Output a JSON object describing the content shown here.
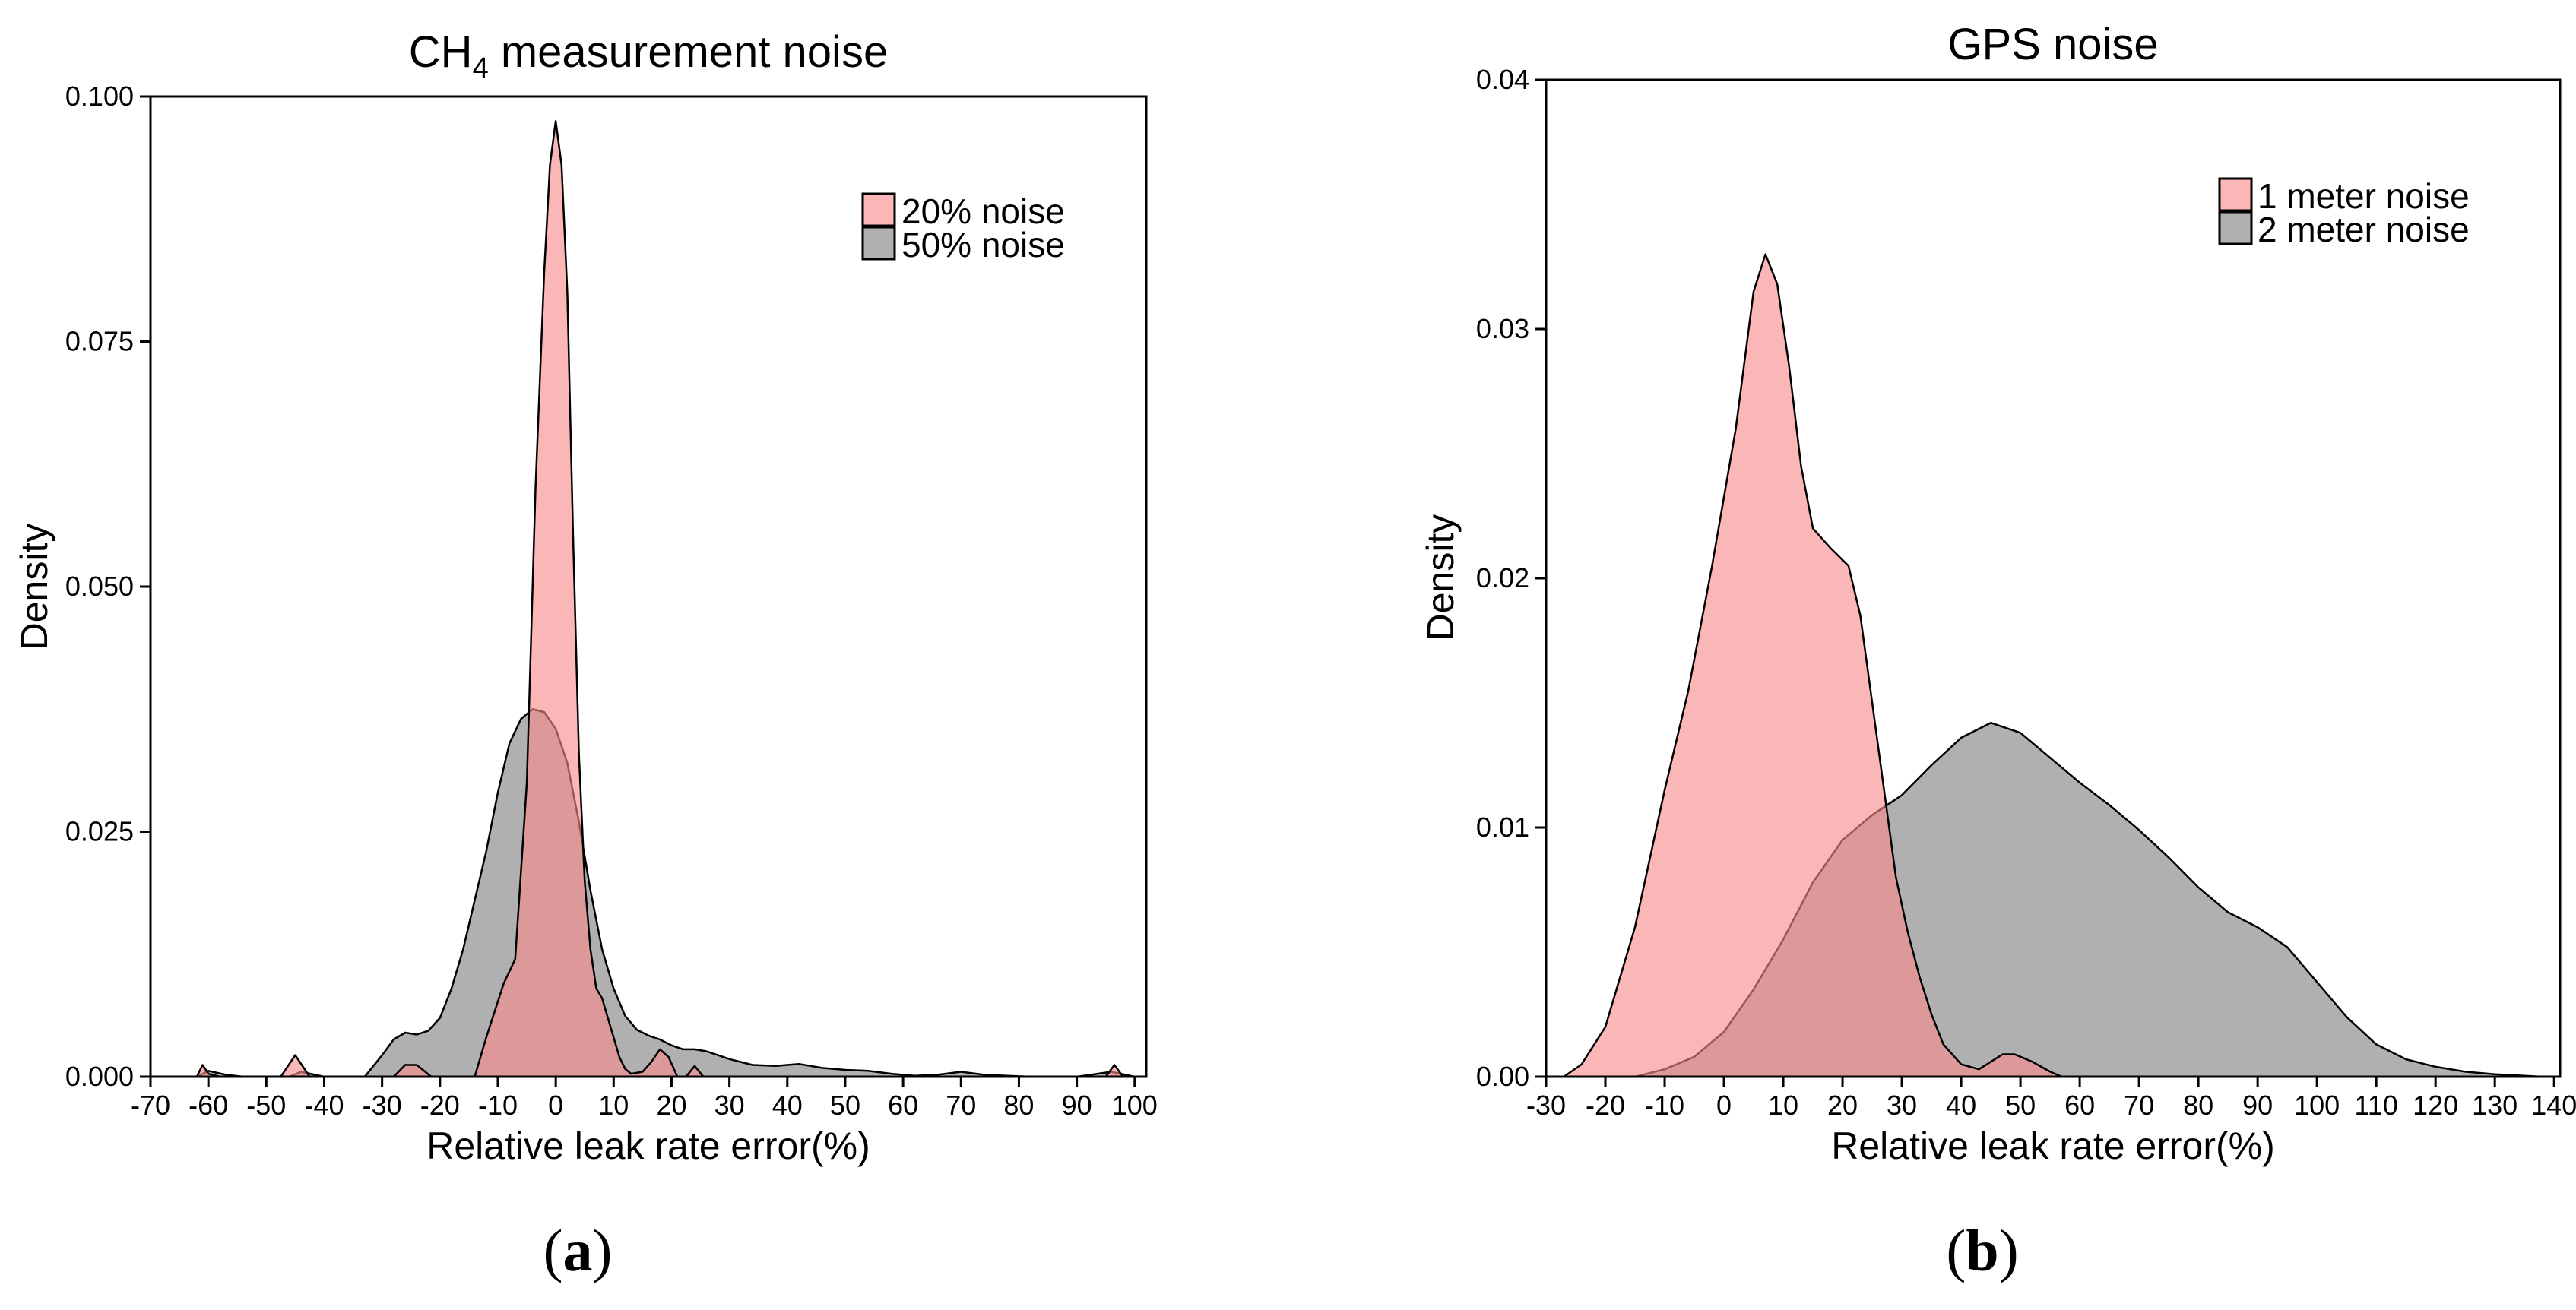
{
  "colors": {
    "pink": "#f98b8b",
    "gray": "#7f7f7f",
    "overlap": "#b07878",
    "stroke": "#000000"
  },
  "chart_data": [
    {
      "type": "area",
      "id": "a",
      "panel_label": "a",
      "title": {
        "main": "CH",
        "sub": "4",
        "rest": " measurement noise"
      },
      "xlabel": "Relative leak rate error(%)",
      "ylabel": "Density",
      "xlim": [
        -70,
        102
      ],
      "ylim": [
        0,
        0.1
      ],
      "x_ticks": [
        -70,
        -60,
        -50,
        -40,
        -30,
        -20,
        -10,
        0,
        10,
        20,
        30,
        40,
        50,
        60,
        70,
        80,
        90,
        100
      ],
      "x_tick_labels": [
        "-70",
        "-60",
        "-50",
        "-40",
        "-30",
        "-20",
        "-10",
        "0",
        "10",
        "20",
        "30",
        "40",
        "50",
        "60",
        "70",
        "80",
        "90",
        "100"
      ],
      "y_ticks": [
        0,
        0.025,
        0.05,
        0.075,
        0.1
      ],
      "y_tick_labels": [
        "0.000",
        "0.025",
        "0.050",
        "0.075",
        "0.100"
      ],
      "legend_position": "top-right",
      "series": [
        {
          "name": "20% noise",
          "color_key": "pink",
          "points": [
            [
              -62,
              0
            ],
            [
              -61,
              0.0012
            ],
            [
              -60,
              0.0003
            ],
            [
              -58,
              0
            ],
            [
              -47.5,
              0
            ],
            [
              -45,
              0.0022
            ],
            [
              -42.5,
              0
            ],
            [
              -28,
              0
            ],
            [
              -26,
              0.0012
            ],
            [
              -24,
              0.0012
            ],
            [
              -21.5,
              0
            ],
            [
              -14,
              0
            ],
            [
              -12,
              0.004
            ],
            [
              -9,
              0.0095
            ],
            [
              -7,
              0.012
            ],
            [
              -5,
              0.03
            ],
            [
              -3.5,
              0.06
            ],
            [
              -2,
              0.082
            ],
            [
              -1,
              0.093
            ],
            [
              0,
              0.0975
            ],
            [
              1,
              0.093
            ],
            [
              2,
              0.08
            ],
            [
              3,
              0.055
            ],
            [
              4,
              0.033
            ],
            [
              5,
              0.02
            ],
            [
              6,
              0.013
            ],
            [
              7,
              0.009
            ],
            [
              8,
              0.008
            ],
            [
              9,
              0.006
            ],
            [
              10,
              0.004
            ],
            [
              11,
              0.002
            ],
            [
              12,
              0.0008
            ],
            [
              13,
              0.0003
            ],
            [
              15,
              0.0005
            ],
            [
              16.5,
              0.0015
            ],
            [
              18,
              0.0028
            ],
            [
              19.5,
              0.002
            ],
            [
              21,
              0
            ],
            [
              22.5,
              0
            ],
            [
              24,
              0.0011
            ],
            [
              25.5,
              0
            ],
            [
              95,
              0
            ],
            [
              96.5,
              0.0012
            ],
            [
              98,
              0
            ]
          ]
        },
        {
          "name": "50% noise",
          "color_key": "gray",
          "points": [
            [
              -62,
              0
            ],
            [
              -60,
              0.0006
            ],
            [
              -57,
              0.0002
            ],
            [
              -54,
              0
            ],
            [
              -46,
              0
            ],
            [
              -44,
              0.0005
            ],
            [
              -40,
              0
            ],
            [
              -33,
              0
            ],
            [
              -30,
              0.0022
            ],
            [
              -28,
              0.0038
            ],
            [
              -26,
              0.0045
            ],
            [
              -24,
              0.0043
            ],
            [
              -22,
              0.0047
            ],
            [
              -20,
              0.006
            ],
            [
              -18,
              0.009
            ],
            [
              -16,
              0.013
            ],
            [
              -14,
              0.018
            ],
            [
              -12,
              0.023
            ],
            [
              -10,
              0.029
            ],
            [
              -8,
              0.034
            ],
            [
              -6,
              0.0365
            ],
            [
              -4,
              0.0375
            ],
            [
              -2,
              0.0372
            ],
            [
              0,
              0.0355
            ],
            [
              2,
              0.032
            ],
            [
              4,
              0.026
            ],
            [
              6,
              0.019
            ],
            [
              8,
              0.013
            ],
            [
              10,
              0.009
            ],
            [
              12,
              0.0062
            ],
            [
              14,
              0.0048
            ],
            [
              16,
              0.0042
            ],
            [
              18,
              0.0038
            ],
            [
              20,
              0.0032
            ],
            [
              22,
              0.0028
            ],
            [
              24,
              0.0028
            ],
            [
              26,
              0.0026
            ],
            [
              28,
              0.0022
            ],
            [
              30,
              0.0018
            ],
            [
              34,
              0.0012
            ],
            [
              38,
              0.0011
            ],
            [
              42,
              0.0013
            ],
            [
              46,
              0.0009
            ],
            [
              50,
              0.0007
            ],
            [
              54,
              0.0006
            ],
            [
              58,
              0.0003
            ],
            [
              62,
              0.0001
            ],
            [
              66,
              0.0002
            ],
            [
              70,
              0.0005
            ],
            [
              74,
              0.0002
            ],
            [
              78,
              0.0001
            ],
            [
              82,
              0
            ],
            [
              90,
              0
            ],
            [
              96,
              0.0005
            ],
            [
              100,
              0
            ]
          ]
        }
      ]
    },
    {
      "type": "area",
      "id": "b",
      "panel_label": "b",
      "title": {
        "main": "GPS noise",
        "sub": "",
        "rest": ""
      },
      "xlabel": "Relative leak rate error(%)",
      "ylabel": "Density",
      "xlim": [
        -30,
        141
      ],
      "ylim": [
        0,
        0.04
      ],
      "x_ticks": [
        -30,
        -20,
        -10,
        0,
        10,
        20,
        30,
        40,
        50,
        60,
        70,
        80,
        90,
        100,
        110,
        120,
        130,
        140
      ],
      "x_tick_labels": [
        "-30",
        "-20",
        "-10",
        "0",
        "10",
        "20",
        "30",
        "40",
        "50",
        "60",
        "70",
        "80",
        "90",
        "100",
        "110",
        "120",
        "130",
        "140"
      ],
      "y_ticks": [
        0,
        0.01,
        0.02,
        0.03,
        0.04
      ],
      "y_tick_labels": [
        "0.00",
        "0.01",
        "0.02",
        "0.03",
        "0.04"
      ],
      "legend_position": "top-right",
      "series": [
        {
          "name": "1 meter noise",
          "color_key": "pink",
          "points": [
            [
              -27,
              0
            ],
            [
              -24,
              0.0005
            ],
            [
              -20,
              0.002
            ],
            [
              -15,
              0.006
            ],
            [
              -10,
              0.0115
            ],
            [
              -6,
              0.0155
            ],
            [
              -2,
              0.0205
            ],
            [
              2,
              0.026
            ],
            [
              5,
              0.0315
            ],
            [
              7,
              0.033
            ],
            [
              9,
              0.0318
            ],
            [
              11,
              0.0285
            ],
            [
              13,
              0.0245
            ],
            [
              15,
              0.022
            ],
            [
              18,
              0.0212
            ],
            [
              21,
              0.0205
            ],
            [
              23,
              0.0185
            ],
            [
              25,
              0.015
            ],
            [
              27,
              0.0115
            ],
            [
              29,
              0.008
            ],
            [
              31,
              0.0058
            ],
            [
              33,
              0.004
            ],
            [
              35,
              0.0025
            ],
            [
              37,
              0.0013
            ],
            [
              40,
              0.0005
            ],
            [
              43,
              0.0003
            ],
            [
              47,
              0.0009
            ],
            [
              49,
              0.0009
            ],
            [
              52,
              0.0006
            ],
            [
              55,
              0.0002
            ],
            [
              57,
              0
            ]
          ]
        },
        {
          "name": "2 meter noise",
          "color_key": "gray",
          "points": [
            [
              -15,
              0
            ],
            [
              -10,
              0.0003
            ],
            [
              -5,
              0.0008
            ],
            [
              0,
              0.0018
            ],
            [
              5,
              0.0035
            ],
            [
              10,
              0.0055
            ],
            [
              15,
              0.0078
            ],
            [
              20,
              0.0095
            ],
            [
              25,
              0.0105
            ],
            [
              30,
              0.0113
            ],
            [
              35,
              0.0125
            ],
            [
              40,
              0.0136
            ],
            [
              45,
              0.0142
            ],
            [
              50,
              0.0138
            ],
            [
              55,
              0.0128
            ],
            [
              60,
              0.0118
            ],
            [
              65,
              0.0109
            ],
            [
              70,
              0.0099
            ],
            [
              75,
              0.0088
            ],
            [
              80,
              0.0076
            ],
            [
              85,
              0.0066
            ],
            [
              90,
              0.006
            ],
            [
              95,
              0.0052
            ],
            [
              100,
              0.0038
            ],
            [
              105,
              0.0024
            ],
            [
              110,
              0.0013
            ],
            [
              115,
              0.0007
            ],
            [
              120,
              0.0004
            ],
            [
              125,
              0.0002
            ],
            [
              130,
              0.0001
            ],
            [
              138,
              0
            ]
          ]
        }
      ]
    }
  ]
}
